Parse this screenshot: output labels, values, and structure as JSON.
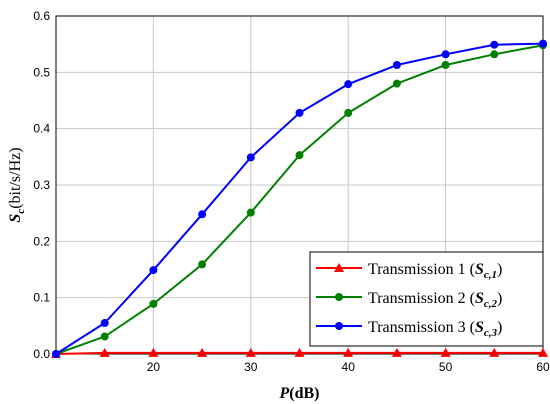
{
  "chart_data": {
    "type": "line",
    "xlabel_main": "P",
    "xlabel_unit": "(dB)",
    "ylabel_main": "S",
    "ylabel_sub": "c",
    "ylabel_unit": "(bit/s/Hz)",
    "xlim": [
      10,
      60
    ],
    "ylim": [
      0,
      0.6
    ],
    "x_ticks": [
      20,
      30,
      40,
      50,
      60
    ],
    "x_tick_labels": [
      "20",
      "30",
      "40",
      "50",
      "60"
    ],
    "y_ticks": [
      0,
      0.1,
      0.2,
      0.3,
      0.4,
      0.5,
      0.6
    ],
    "y_tick_labels": [
      "0.0",
      "0.1",
      "0.2",
      "0.3",
      "0.4",
      "0.5",
      "0.6"
    ],
    "grid": true,
    "legend_position": "bottom-right",
    "x": [
      10,
      15,
      20,
      25,
      30,
      35,
      40,
      45,
      50,
      55,
      60
    ],
    "series": [
      {
        "name": "Transmission 1 (",
        "sym": "S",
        "sub": "c,1",
        "close": ")",
        "color": "#ff0000",
        "marker": "triangle",
        "values": [
          0.0,
          0.002,
          0.002,
          0.002,
          0.002,
          0.002,
          0.002,
          0.002,
          0.002,
          0.002,
          0.002
        ]
      },
      {
        "name": "Transmission 2 (",
        "sym": "S",
        "sub": "c,2",
        "close": ")",
        "color": "#008000",
        "marker": "circle",
        "values": [
          0.0,
          0.031,
          0.089,
          0.159,
          0.251,
          0.353,
          0.428,
          0.48,
          0.513,
          0.532,
          0.548
        ]
      },
      {
        "name": "Transmission 3 (",
        "sym": "S",
        "sub": "c,3",
        "close": ")",
        "color": "#0000ff",
        "marker": "circle",
        "values": [
          0.0,
          0.055,
          0.149,
          0.248,
          0.349,
          0.428,
          0.479,
          0.513,
          0.532,
          0.549,
          0.551
        ]
      }
    ]
  }
}
